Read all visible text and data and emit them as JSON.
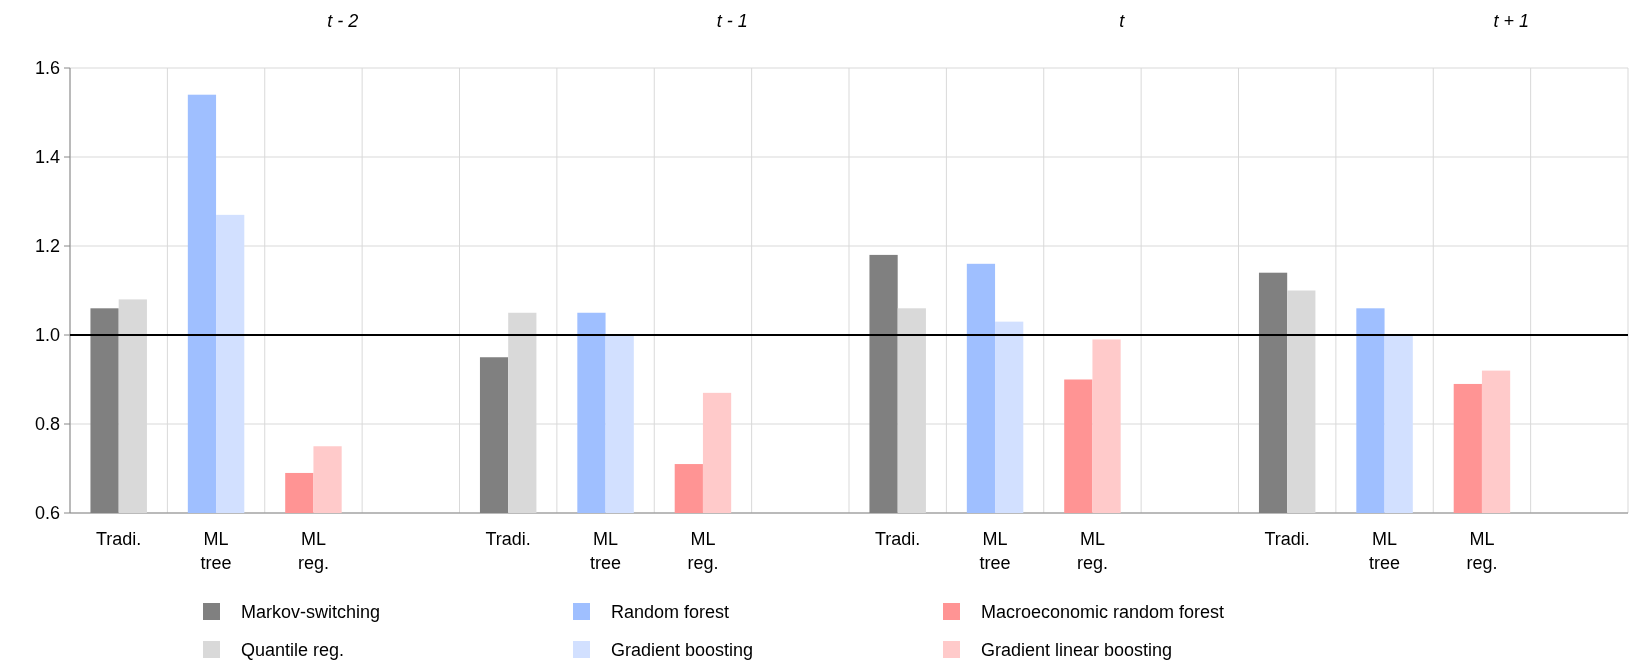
{
  "chart_data": {
    "type": "bar",
    "categories": [
      "Tradi.",
      "ML tree",
      "ML reg.",
      null,
      "Tradi.",
      "ML tree",
      "ML reg.",
      null,
      "Tradi.",
      "ML tree",
      "ML reg.",
      null,
      "Tradi.",
      "ML tree",
      "ML reg.",
      null
    ],
    "series": [
      {
        "name": "Markov-switching",
        "color": "#808080",
        "values": [
          1.06,
          null,
          null,
          null,
          0.95,
          null,
          null,
          null,
          1.18,
          null,
          null,
          null,
          1.14,
          null,
          null,
          null
        ]
      },
      {
        "name": "Quantile reg.",
        "color": "#d9d9d9",
        "values": [
          1.08,
          null,
          null,
          null,
          1.05,
          null,
          null,
          null,
          1.06,
          null,
          null,
          null,
          1.1,
          null,
          null,
          null
        ]
      },
      {
        "name": "Random forest",
        "color": "#9fbfff",
        "values": [
          null,
          1.54,
          null,
          null,
          null,
          1.05,
          null,
          null,
          null,
          1.16,
          null,
          null,
          null,
          1.06,
          null,
          null
        ]
      },
      {
        "name": "Gradient boosting",
        "color": "#d2e0ff",
        "values": [
          null,
          1.27,
          null,
          null,
          null,
          1.0,
          null,
          null,
          null,
          1.03,
          null,
          null,
          null,
          1.0,
          null,
          null
        ]
      },
      {
        "name": "Macroeconomic random forest",
        "color": "#ff9494",
        "values": [
          null,
          null,
          0.69,
          null,
          null,
          null,
          0.71,
          null,
          null,
          null,
          0.9,
          null,
          null,
          null,
          0.89,
          null
        ]
      },
      {
        "name": "Gradient linear boosting",
        "color": "#ffcaca",
        "values": [
          null,
          null,
          0.75,
          null,
          null,
          null,
          0.87,
          null,
          null,
          null,
          0.99,
          null,
          null,
          null,
          0.92,
          null
        ]
      }
    ],
    "ylim": [
      0.6,
      1.6
    ],
    "yticks": [
      {
        "value": 0.6,
        "label": "0.6"
      },
      {
        "value": 0.8,
        "label": "0.8"
      },
      {
        "value": 1.0,
        "label": "1.0"
      },
      {
        "value": 1.2,
        "label": "1.2"
      },
      {
        "value": 1.4,
        "label": "1.4"
      },
      {
        "value": 1.6,
        "label": "1.6"
      }
    ],
    "ref_lines": [
      {
        "axis": "y",
        "value": 1.0,
        "color": "#000000"
      }
    ],
    "annotations": [
      "t - 2",
      "t - 1",
      "t",
      "t + 1"
    ],
    "grid": true,
    "legend": "bottom"
  }
}
